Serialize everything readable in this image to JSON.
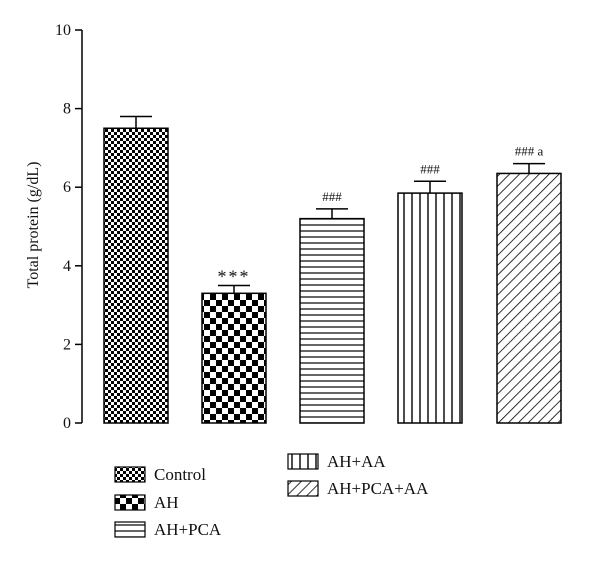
{
  "chart_data": {
    "type": "bar",
    "categories": [
      "Control",
      "AH",
      "AH+PCA",
      "AH+AA",
      "AH+PCA+AA"
    ],
    "values": [
      7.5,
      3.3,
      5.2,
      5.85,
      6.35
    ],
    "errors": [
      0.3,
      0.2,
      0.25,
      0.3,
      0.25
    ],
    "annotations": [
      "",
      "***",
      "###",
      "###",
      "### a"
    ],
    "patterns": [
      "fine-checker",
      "coarse-checker",
      "horizontal-lines",
      "vertical-lines",
      "diagonal-lines"
    ],
    "ylabel": "Total protein (g/dL)",
    "xlabel": "",
    "ylim": [
      0,
      10
    ],
    "yticks": [
      "0",
      "2",
      "4",
      "6",
      "8",
      "10"
    ],
    "legend_position": "bottom",
    "legend": [
      "Control",
      "AH",
      "AH+PCA",
      "AH+AA",
      "AH+PCA+AA"
    ],
    "bar_color": "#000000"
  }
}
